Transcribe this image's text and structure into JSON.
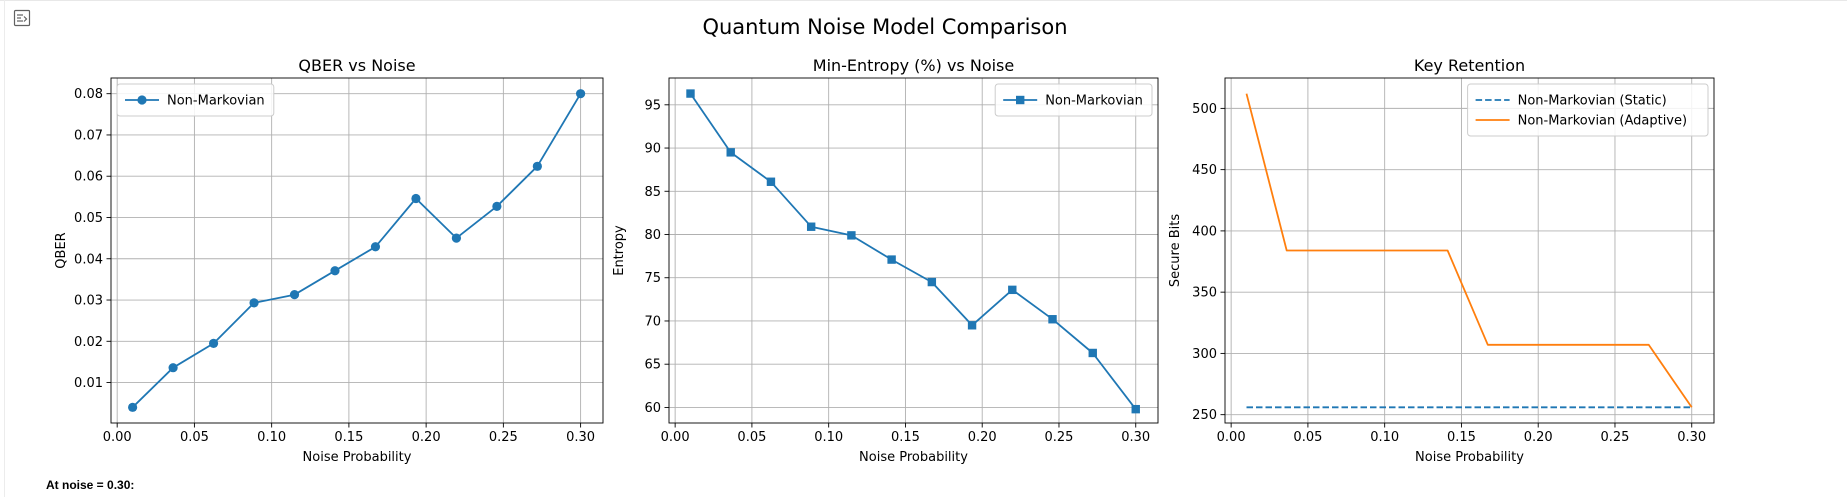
{
  "toolbar": {
    "icon": "output-collapse-icon"
  },
  "figure": {
    "suptitle": "Quantum Noise Model Comparison"
  },
  "output_text": "At noise = 0.30:",
  "colors": {
    "series1": "#1f77b4",
    "series2": "#ff7f0e",
    "grid": "#b0b0b0"
  },
  "chart_data": [
    {
      "type": "line",
      "title": "QBER vs Noise",
      "xlabel": "Noise Probability",
      "ylabel": "QBER",
      "xlim": [
        -0.004,
        0.3145
      ],
      "ylim": [
        0.0002,
        0.0838
      ],
      "xticks": [
        0.0,
        0.05,
        0.1,
        0.15,
        0.2,
        0.25,
        0.3
      ],
      "xtick_labels": [
        "0.00",
        "0.05",
        "0.10",
        "0.15",
        "0.20",
        "0.25",
        "0.30"
      ],
      "yticks": [
        0.01,
        0.02,
        0.03,
        0.04,
        0.05,
        0.06,
        0.07,
        0.08
      ],
      "ytick_labels": [
        "0.01",
        "0.02",
        "0.03",
        "0.04",
        "0.05",
        "0.06",
        "0.07",
        "0.08"
      ],
      "grid": true,
      "legend": "top-left",
      "series": [
        {
          "name": "Non-Markovian",
          "color": "#1f77b4",
          "linestyle": "solid",
          "marker": "circle",
          "x": [
            0.01,
            0.0362,
            0.0624,
            0.0886,
            0.1148,
            0.141,
            0.1672,
            0.1934,
            0.2196,
            0.2458,
            0.272,
            0.3
          ],
          "y": [
            0.004,
            0.0136,
            0.0195,
            0.0293,
            0.0313,
            0.0371,
            0.0429,
            0.0546,
            0.045,
            0.0527,
            0.0624,
            0.08
          ]
        }
      ]
    },
    {
      "type": "line",
      "title": "Min-Entropy (%) vs Noise",
      "xlabel": "Noise Probability",
      "ylabel": "Entropy",
      "xlim": [
        -0.004,
        0.3145
      ],
      "ylim": [
        58.2,
        98.1
      ],
      "xticks": [
        0.0,
        0.05,
        0.1,
        0.15,
        0.2,
        0.25,
        0.3
      ],
      "xtick_labels": [
        "0.00",
        "0.05",
        "0.10",
        "0.15",
        "0.20",
        "0.25",
        "0.30"
      ],
      "yticks": [
        60,
        65,
        70,
        75,
        80,
        85,
        90,
        95
      ],
      "ytick_labels": [
        "60",
        "65",
        "70",
        "75",
        "80",
        "85",
        "90",
        "95"
      ],
      "grid": true,
      "legend": "top-right",
      "series": [
        {
          "name": "Non-Markovian",
          "color": "#1f77b4",
          "linestyle": "solid",
          "marker": "square",
          "x": [
            0.01,
            0.0362,
            0.0624,
            0.0886,
            0.1148,
            0.141,
            0.1672,
            0.1934,
            0.2196,
            0.2458,
            0.272,
            0.3
          ],
          "y": [
            96.3,
            89.5,
            86.1,
            80.9,
            79.9,
            77.1,
            74.5,
            69.5,
            73.6,
            70.2,
            66.3,
            59.8
          ]
        }
      ]
    },
    {
      "type": "line",
      "title": "Key Retention",
      "xlabel": "Noise Probability",
      "ylabel": "Secure Bits",
      "xlim": [
        -0.004,
        0.3145
      ],
      "ylim": [
        243.2,
        524.8
      ],
      "xticks": [
        0.0,
        0.05,
        0.1,
        0.15,
        0.2,
        0.25,
        0.3
      ],
      "xtick_labels": [
        "0.00",
        "0.05",
        "0.10",
        "0.15",
        "0.20",
        "0.25",
        "0.30"
      ],
      "yticks": [
        250,
        300,
        350,
        400,
        450,
        500
      ],
      "ytick_labels": [
        "250",
        "300",
        "350",
        "400",
        "450",
        "500"
      ],
      "grid": true,
      "legend": "top-right",
      "series": [
        {
          "name": "Non-Markovian (Static)",
          "color": "#1f77b4",
          "linestyle": "dashed",
          "marker": "none",
          "x": [
            0.01,
            0.0362,
            0.0624,
            0.0886,
            0.1148,
            0.141,
            0.1672,
            0.1934,
            0.2196,
            0.2458,
            0.272,
            0.3
          ],
          "y": [
            256,
            256,
            256,
            256,
            256,
            256,
            256,
            256,
            256,
            256,
            256,
            256
          ]
        },
        {
          "name": "Non-Markovian (Adaptive)",
          "color": "#ff7f0e",
          "linestyle": "solid",
          "marker": "none",
          "x": [
            0.01,
            0.0362,
            0.0624,
            0.0886,
            0.1148,
            0.141,
            0.1672,
            0.1934,
            0.2196,
            0.2458,
            0.272,
            0.3
          ],
          "y": [
            512,
            384,
            384,
            384,
            384,
            384,
            307,
            307,
            307,
            307,
            307,
            256
          ]
        }
      ]
    }
  ]
}
